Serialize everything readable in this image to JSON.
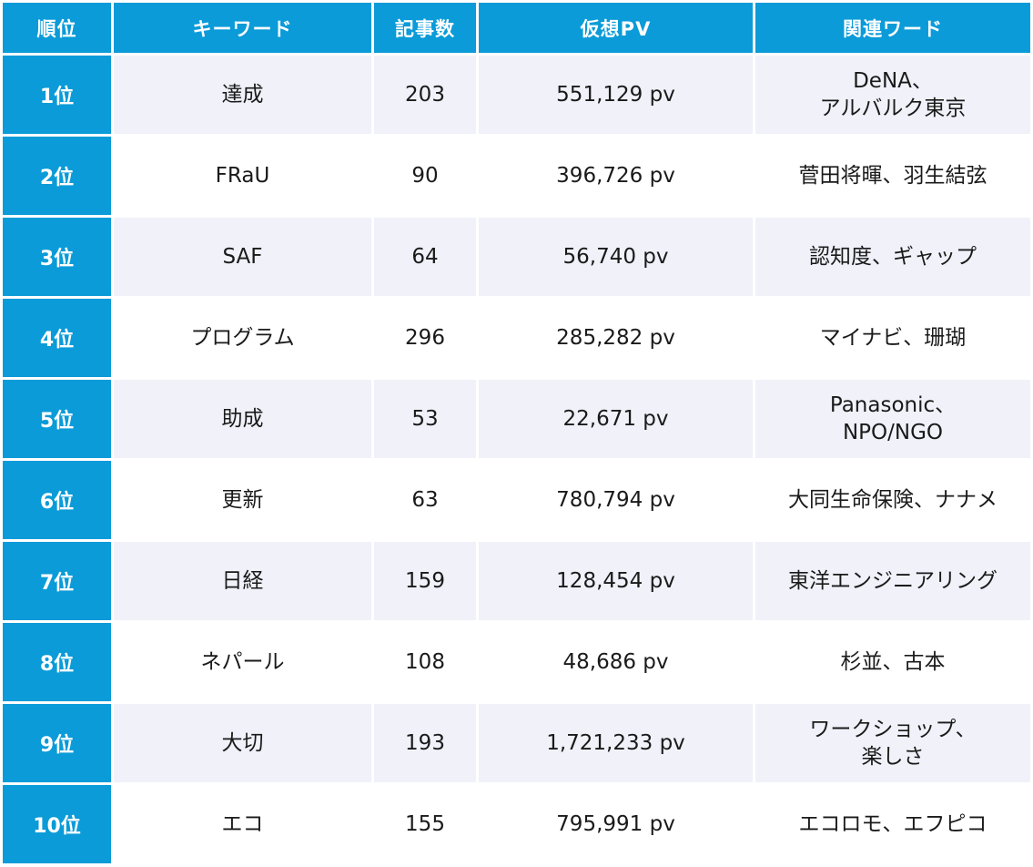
{
  "header": {
    "rank": "順位",
    "keyword": "キーワード",
    "articles": "記事数",
    "pv": "仮想PV",
    "related": "関連ワード"
  },
  "rows": [
    {
      "rank": "1位",
      "keyword": "達成",
      "articles": "203",
      "pv": "551,129 pv",
      "related": [
        "DeNA、",
        "アルバルク東京"
      ]
    },
    {
      "rank": "2位",
      "keyword": "FRaU",
      "articles": "90",
      "pv": "396,726 pv",
      "related": [
        "菅田将暉、羽生結弦"
      ]
    },
    {
      "rank": "3位",
      "keyword": "SAF",
      "articles": "64",
      "pv": "56,740 pv",
      "related": [
        "認知度、ギャップ"
      ]
    },
    {
      "rank": "4位",
      "keyword": "プログラム",
      "articles": "296",
      "pv": "285,282 pv",
      "related": [
        "マイナビ、珊瑚"
      ]
    },
    {
      "rank": "5位",
      "keyword": "助成",
      "articles": "53",
      "pv": "22,671 pv",
      "related": [
        "Panasonic、",
        "NPO/NGO"
      ]
    },
    {
      "rank": "6位",
      "keyword": "更新",
      "articles": "63",
      "pv": "780,794 pv",
      "related": [
        "大同生命保険、ナナメ"
      ]
    },
    {
      "rank": "7位",
      "keyword": "日経",
      "articles": "159",
      "pv": "128,454 pv",
      "related": [
        "東洋エンジニアリング"
      ]
    },
    {
      "rank": "8位",
      "keyword": "ネパール",
      "articles": "108",
      "pv": "48,686 pv",
      "related": [
        "杉並、古本"
      ]
    },
    {
      "rank": "9位",
      "keyword": "大切",
      "articles": "193",
      "pv": "1,721,233 pv",
      "related": [
        "ワークショップ、",
        "楽しさ"
      ]
    },
    {
      "rank": "10位",
      "keyword": "エコ",
      "articles": "155",
      "pv": "795,991 pv",
      "related": [
        "エコロモ、エフピコ"
      ]
    }
  ]
}
